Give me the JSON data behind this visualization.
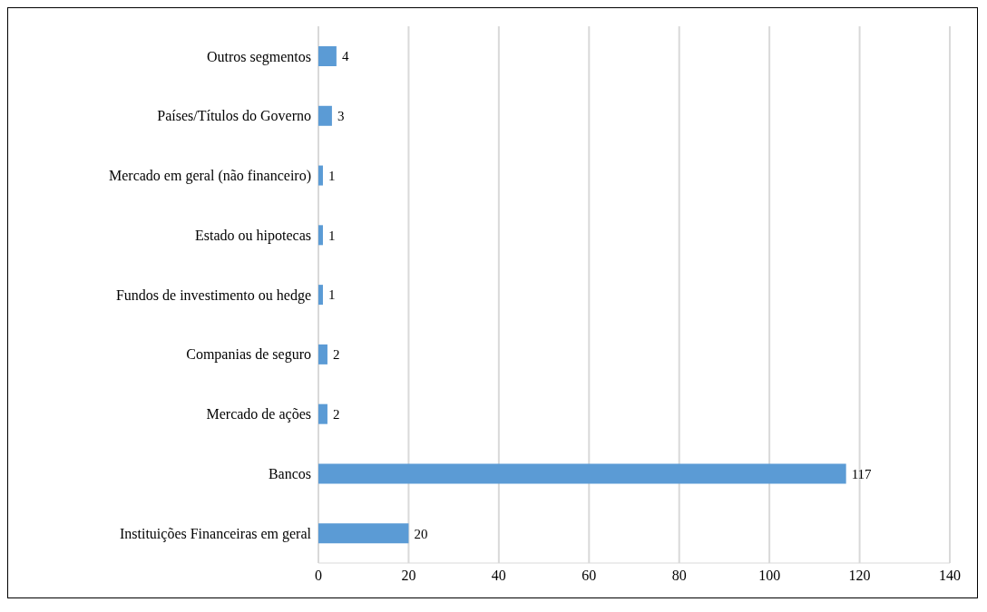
{
  "chart_data": {
    "type": "bar",
    "orientation": "horizontal",
    "categories": [
      "Outros segmentos",
      "Países/Títulos do Governo",
      "Mercado em geral (não financeiro)",
      "Estado ou hipotecas",
      "Fundos de investimento ou hedge",
      "Companias de seguro",
      "Mercado de ações",
      "Bancos",
      "Instituições Financeiras em geral"
    ],
    "values": [
      4,
      3,
      1,
      1,
      1,
      2,
      2,
      117,
      20
    ],
    "color": "#5b9bd5",
    "xlim": [
      0,
      140
    ],
    "xticks": [
      0,
      20,
      40,
      60,
      80,
      100,
      120,
      140
    ],
    "grid": "x",
    "data_labels": true
  }
}
